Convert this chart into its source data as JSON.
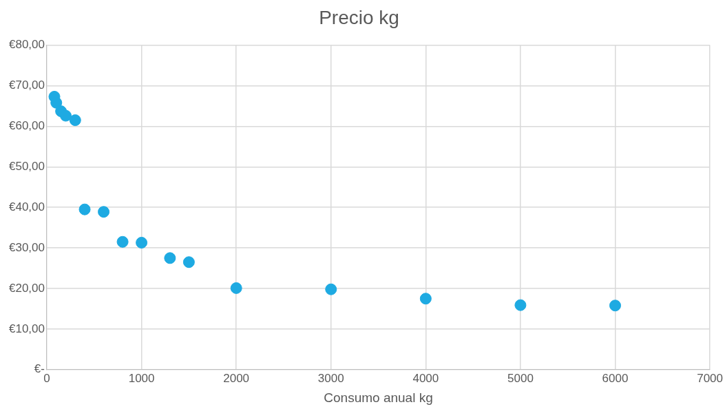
{
  "chart_data": {
    "type": "scatter",
    "title": "Precio kg",
    "xlabel": "Consumo anual kg",
    "x": [
      80,
      100,
      150,
      200,
      300,
      400,
      600,
      800,
      1000,
      1300,
      1500,
      2000,
      3000,
      4000,
      5000,
      6000
    ],
    "values": [
      67.3,
      65.8,
      63.7,
      62.6,
      61.5,
      39.5,
      38.9,
      31.5,
      31.3,
      27.5,
      26.5,
      20.1,
      19.8,
      17.5,
      15.9,
      15.8
    ],
    "color": "#1eaae2",
    "marker": "circle",
    "grid": true,
    "legend": false,
    "xlim": [
      0,
      7000
    ],
    "xticks": [
      0,
      1000,
      2000,
      3000,
      4000,
      5000,
      6000,
      7000
    ],
    "ylim": [
      0,
      80
    ],
    "yticks": [
      {
        "value": 0,
        "label": "€-"
      },
      {
        "value": 10,
        "label": "€10,00"
      },
      {
        "value": 20,
        "label": "€20,00"
      },
      {
        "value": 30,
        "label": "€30,00"
      },
      {
        "value": 40,
        "label": "€40,00"
      },
      {
        "value": 50,
        "label": "€50,00"
      },
      {
        "value": 60,
        "label": "€60,00"
      },
      {
        "value": 70,
        "label": "€70,00"
      },
      {
        "value": 80,
        "label": "€80,00"
      }
    ]
  }
}
